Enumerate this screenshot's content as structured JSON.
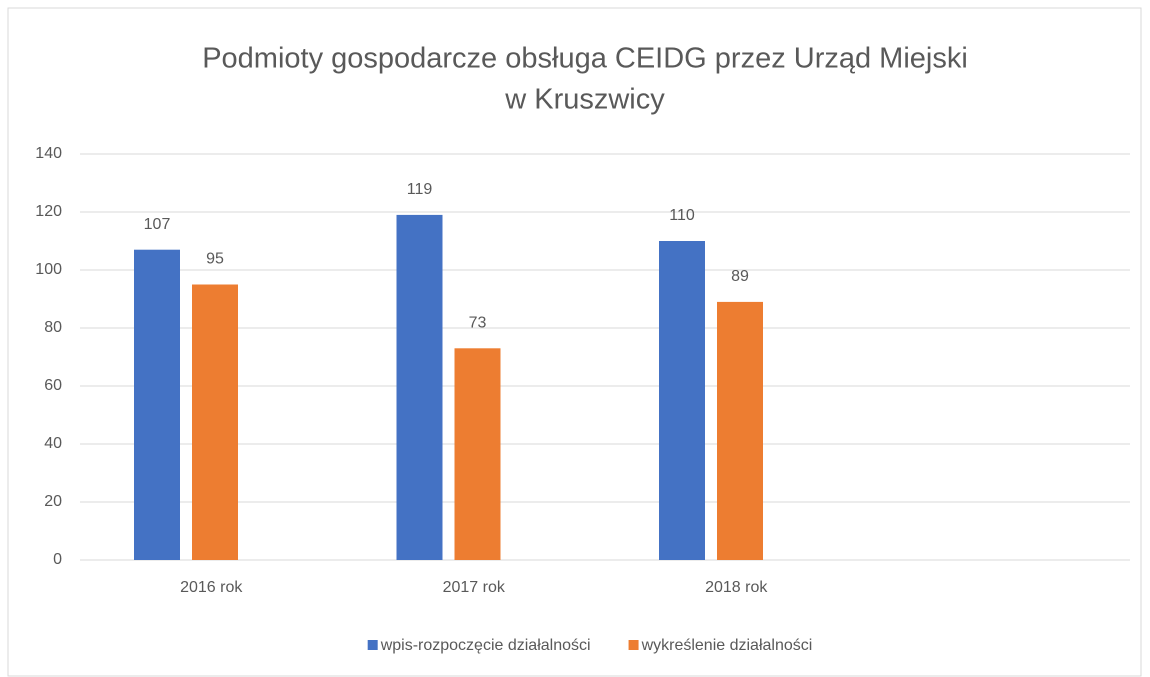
{
  "chart_data": {
    "type": "bar",
    "title": [
      "Podmioty gospodarcze obsługa CEIDG przez Urząd Miejski",
      "w Kruszwicy"
    ],
    "categories": [
      "2016 rok",
      "2017 rok",
      "2018 rok",
      null
    ],
    "series": [
      {
        "name": "wpis-rozpoczęcie działalności",
        "color": "#4472c4",
        "values": [
          107,
          119,
          110,
          null
        ]
      },
      {
        "name": "wykreślenie działalności",
        "color": "#ed7d31",
        "values": [
          95,
          73,
          89,
          null
        ]
      }
    ],
    "ylim": [
      0,
      140
    ],
    "yticks": [
      0,
      20,
      40,
      60,
      80,
      100,
      120,
      140
    ],
    "grid": true,
    "legend": "bottom"
  }
}
